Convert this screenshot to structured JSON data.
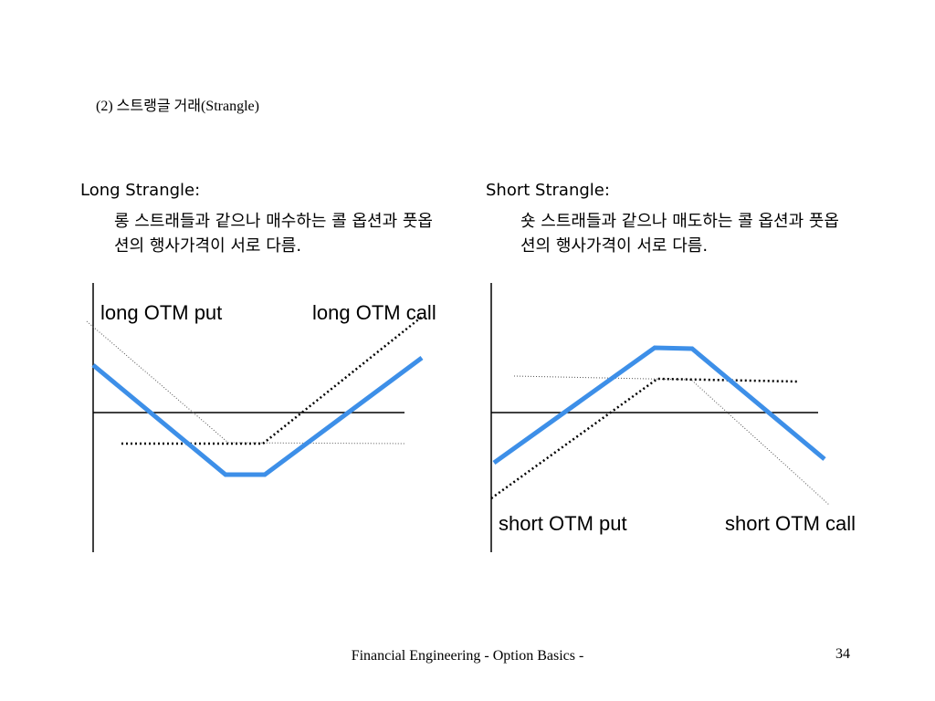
{
  "title": "(2) 스트랭글 거래(Strangle)",
  "long": {
    "heading": "Long Strangle:",
    "description": "롱 스트래들과 같으나 매수하는 콜 옵션과 풋옵션의 행사가격이 서로 다름.",
    "labels": [
      "long OTM put",
      "long OTM call"
    ]
  },
  "short": {
    "heading": "Short Strangle:",
    "description": "숏 스트래들과 같으나 매도하는 콜 옵션과 풋옵션의 행사가격이 서로 다름.",
    "labels": [
      "short OTM put",
      "short OTM call"
    ]
  },
  "footer": {
    "text": "Financial Engineering - Option Basics -",
    "page": "34"
  }
}
